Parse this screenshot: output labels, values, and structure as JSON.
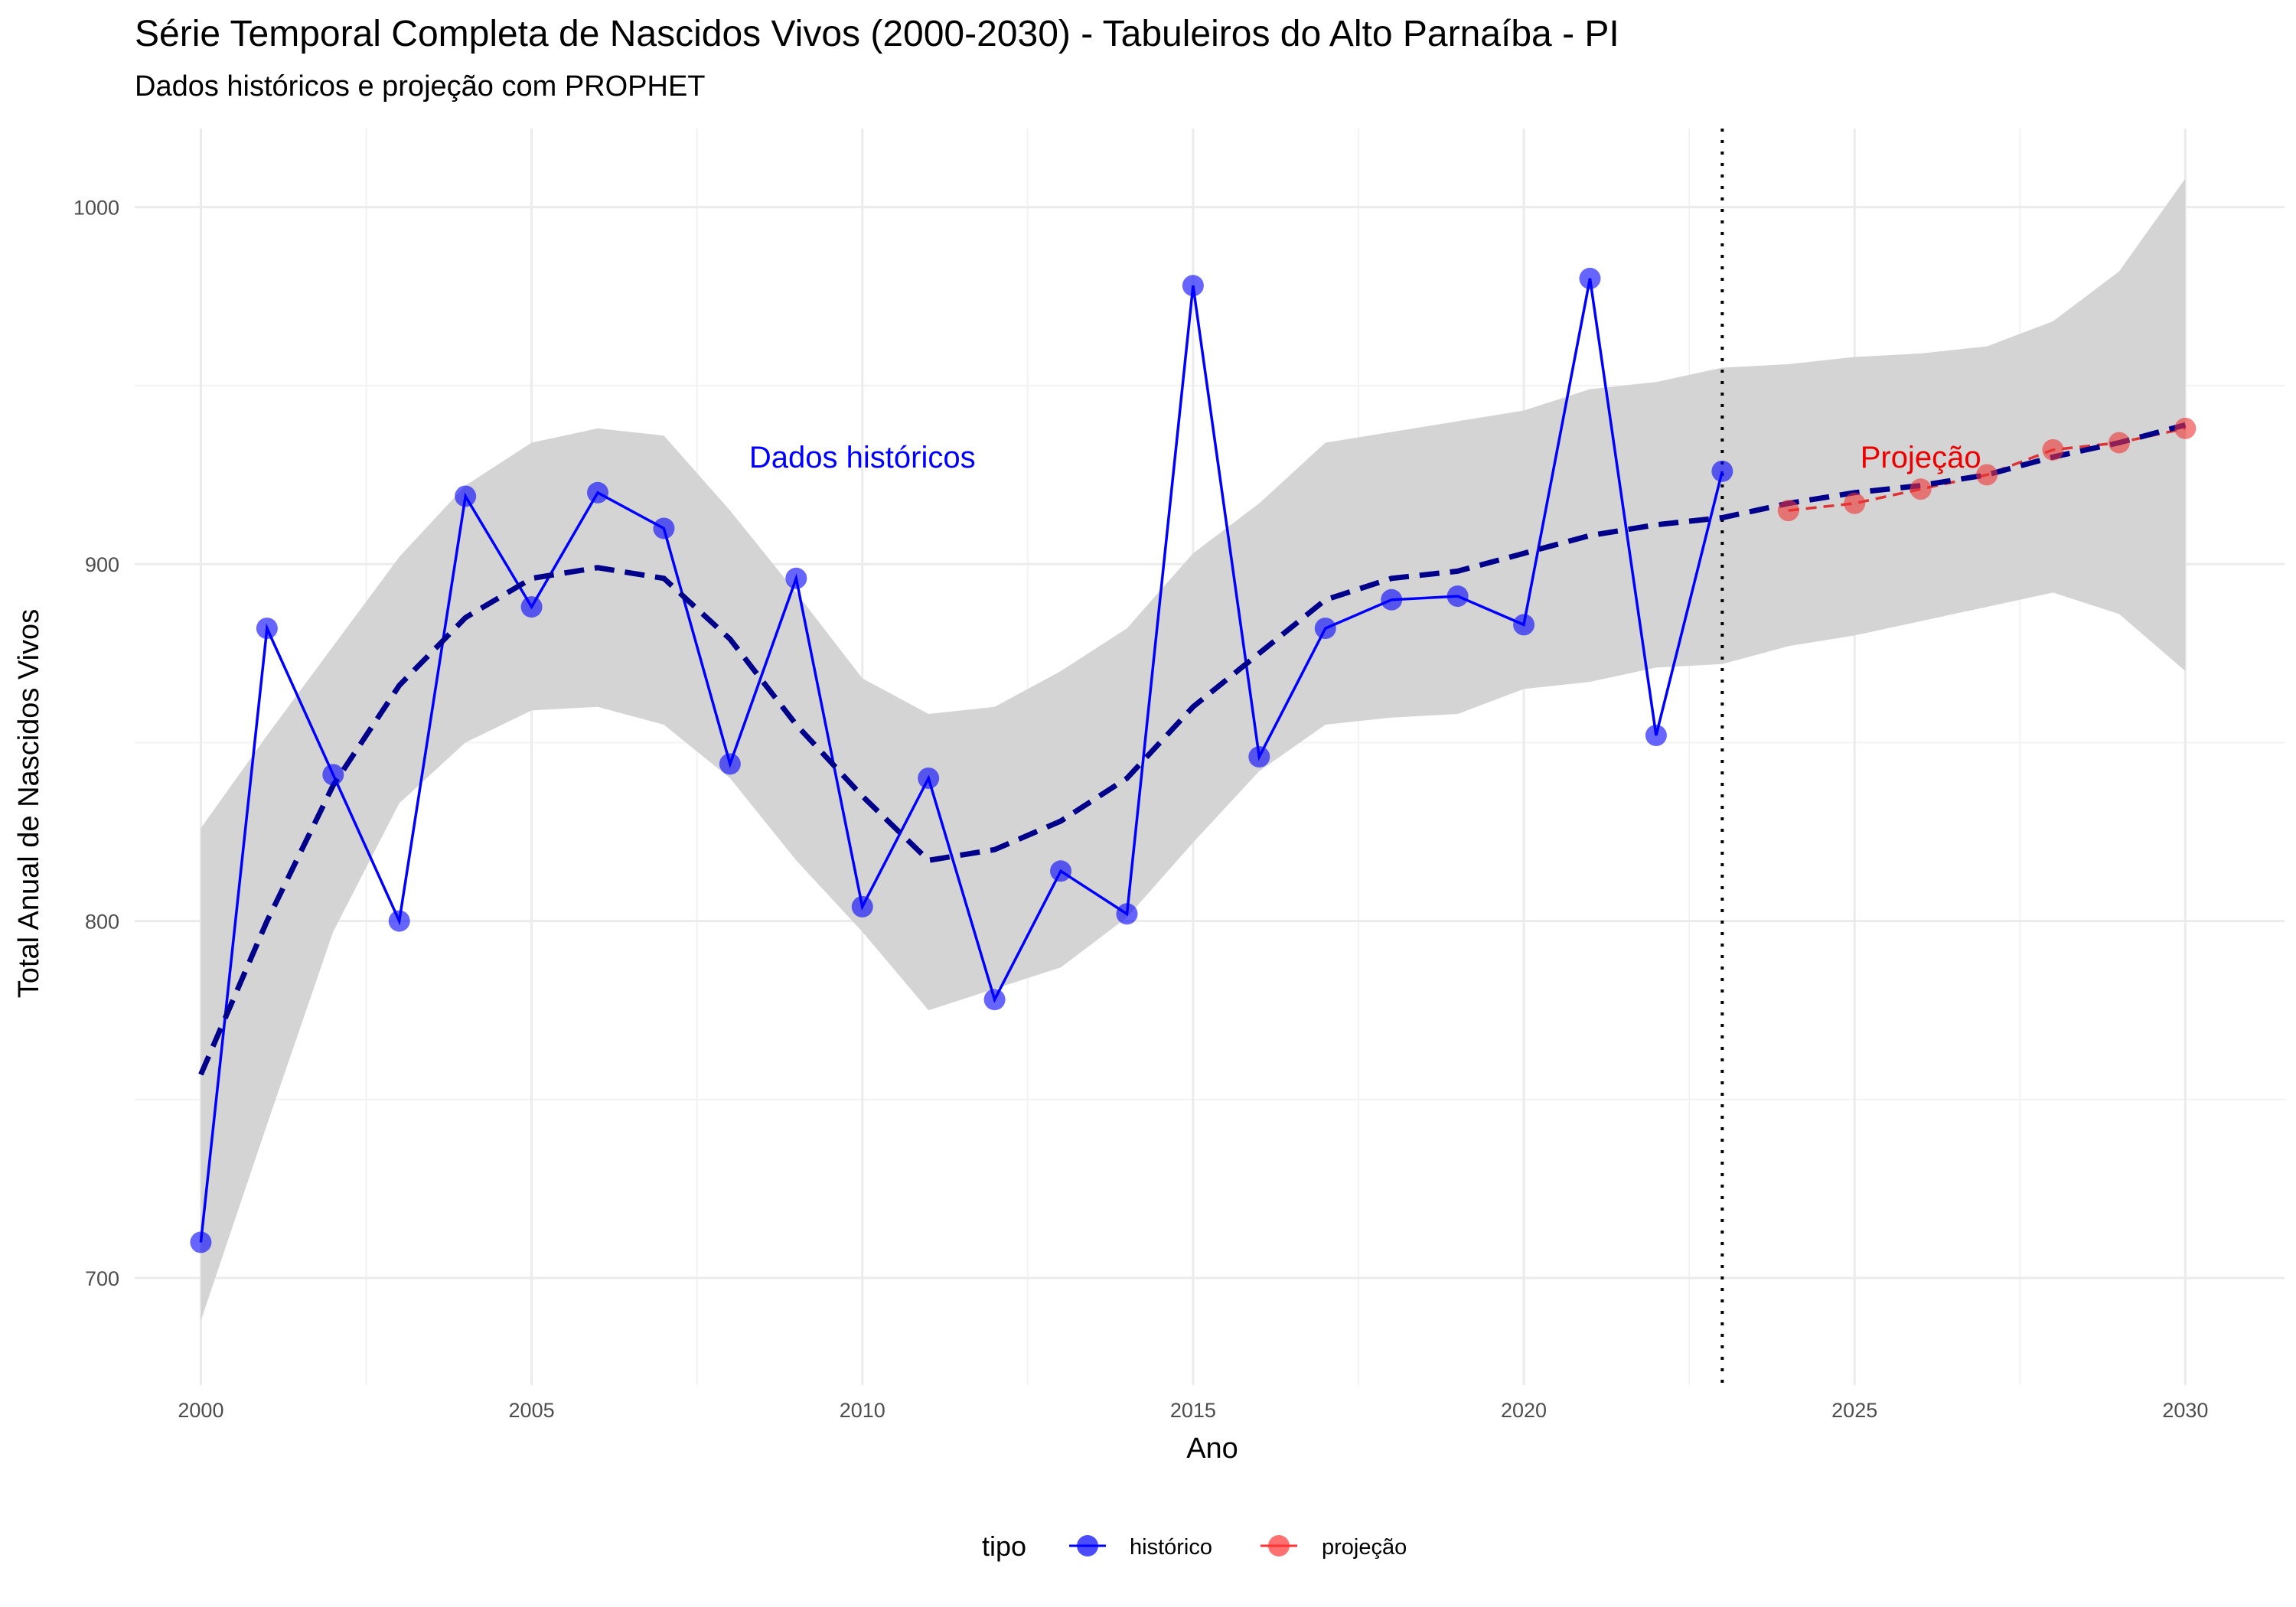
{
  "chart_data": {
    "type": "line",
    "title": "Série Temporal Completa de Nascidos Vivos (2000-2030) -  Tabuleiros do Alto Parnaíba - PI",
    "subtitle": "Dados históricos e projeção com PROPHET",
    "xlabel": "Ano",
    "ylabel": "Total Anual de Nascidos Vivos",
    "xlim": [
      1999,
      2031.5
    ],
    "ylim": [
      670,
      1022
    ],
    "x_ticks": [
      "2000",
      "2005",
      "2010",
      "2015",
      "2020",
      "2025",
      "2030"
    ],
    "y_ticks": [
      "700",
      "800",
      "900",
      "1000"
    ],
    "grid": true,
    "forecast_start": 2023,
    "legend": {
      "title": "tipo",
      "position": "bottom",
      "entries": [
        {
          "label": "histórico",
          "color": "#0000ff"
        },
        {
          "label": "projeção",
          "color": "#ff3333"
        }
      ]
    },
    "annotations": [
      {
        "text": "Dados históricos",
        "x": 2010,
        "y": 930,
        "color": "#0000ff"
      },
      {
        "text": "Projeção",
        "x": 2026,
        "y": 930,
        "color": "#ee0000"
      }
    ],
    "series": [
      {
        "name": "histórico",
        "color": "#0000ff",
        "x": [
          2000,
          2001,
          2002,
          2003,
          2004,
          2005,
          2006,
          2007,
          2008,
          2009,
          2010,
          2011,
          2012,
          2013,
          2014,
          2015,
          2016,
          2017,
          2018,
          2019,
          2020,
          2021,
          2022,
          2023
        ],
        "values": [
          710,
          882,
          841,
          800,
          919,
          888,
          920,
          910,
          844,
          896,
          804,
          840,
          778,
          814,
          802,
          978,
          846,
          882,
          890,
          891,
          883,
          980,
          852,
          926
        ]
      },
      {
        "name": "projeção",
        "color": "#dd3333",
        "x": [
          2024,
          2025,
          2026,
          2027,
          2028,
          2029,
          2030
        ],
        "values": [
          915,
          917,
          921,
          925,
          932,
          934,
          938
        ]
      }
    ],
    "trend": {
      "color": "#00008b",
      "x": [
        2000,
        2001,
        2002,
        2003,
        2004,
        2005,
        2006,
        2007,
        2008,
        2009,
        2010,
        2011,
        2012,
        2013,
        2014,
        2015,
        2016,
        2017,
        2018,
        2019,
        2020,
        2021,
        2022,
        2023,
        2024,
        2025,
        2026,
        2027,
        2028,
        2029,
        2030
      ],
      "values": [
        757,
        800,
        838,
        866,
        885,
        896,
        899,
        896,
        879,
        855,
        835,
        817,
        820,
        828,
        840,
        860,
        875,
        890,
        896,
        898,
        903,
        908,
        911,
        913,
        917,
        920,
        922,
        925,
        930,
        934,
        939
      ]
    },
    "confidence_band": {
      "color": "#d4d4d4",
      "x": [
        2000,
        2001,
        2002,
        2003,
        2004,
        2005,
        2006,
        2007,
        2008,
        2009,
        2010,
        2011,
        2012,
        2013,
        2014,
        2015,
        2016,
        2017,
        2018,
        2019,
        2020,
        2021,
        2022,
        2023,
        2024,
        2025,
        2026,
        2027,
        2028,
        2029,
        2030
      ],
      "upper": [
        826,
        852,
        877,
        902,
        922,
        934,
        938,
        936,
        915,
        892,
        868,
        858,
        860,
        870,
        882,
        903,
        917,
        934,
        937,
        940,
        943,
        949,
        951,
        955,
        956,
        958,
        959,
        961,
        968,
        982,
        1008
      ],
      "lower": [
        688,
        743,
        797,
        833,
        850,
        859,
        860,
        855,
        840,
        817,
        797,
        775,
        781,
        787,
        801,
        822,
        842,
        855,
        857,
        858,
        865,
        867,
        871,
        872,
        877,
        880,
        884,
        888,
        892,
        886,
        870
      ]
    }
  }
}
